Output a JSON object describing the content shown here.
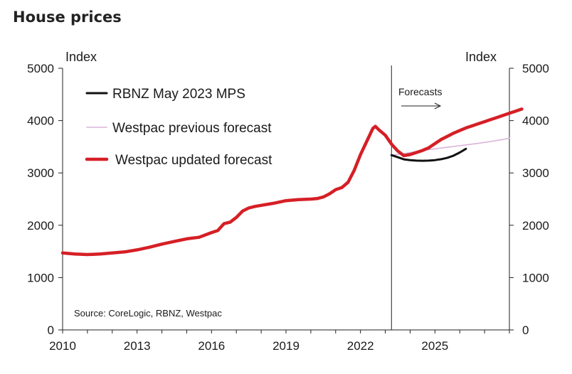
{
  "chart_data": {
    "type": "line",
    "title": "House prices",
    "ylabel_left": "Index",
    "ylabel_right": "Index",
    "xlim": [
      2010,
      2028
    ],
    "ylim": [
      0,
      5000
    ],
    "x_ticks": [
      2010,
      2013,
      2016,
      2019,
      2022,
      2025
    ],
    "y_ticks": [
      0,
      1000,
      2000,
      3000,
      4000,
      5000
    ],
    "forecast_start": 2023.25,
    "forecast_label": "Forecasts",
    "source": "Source: CoreLogic, RBNZ, Westpac",
    "series": [
      {
        "name": "RBNZ May 2023 MPS",
        "color": "#111111",
        "width": 3,
        "points": [
          [
            2023.25,
            3340
          ],
          [
            2023.5,
            3300
          ],
          [
            2023.75,
            3260
          ],
          [
            2024.0,
            3245
          ],
          [
            2024.25,
            3235
          ],
          [
            2024.5,
            3232
          ],
          [
            2024.75,
            3235
          ],
          [
            2025.0,
            3245
          ],
          [
            2025.25,
            3262
          ],
          [
            2025.5,
            3290
          ],
          [
            2025.75,
            3330
          ],
          [
            2026.0,
            3390
          ],
          [
            2026.25,
            3460
          ]
        ]
      },
      {
        "name": "Westpac previous forecast",
        "color": "#d9b4d9",
        "width": 1.6,
        "points": [
          [
            2023.25,
            3340
          ],
          [
            2023.75,
            3370
          ],
          [
            2024.25,
            3410
          ],
          [
            2024.75,
            3445
          ],
          [
            2025.25,
            3475
          ],
          [
            2025.75,
            3505
          ],
          [
            2026.25,
            3535
          ],
          [
            2026.75,
            3565
          ],
          [
            2027.25,
            3600
          ],
          [
            2027.75,
            3640
          ],
          [
            2028.0,
            3665
          ]
        ]
      },
      {
        "name": "Westpac updated forecast",
        "color": "#d61f26",
        "width": 4.5,
        "points": [
          [
            2010.0,
            1470
          ],
          [
            2010.5,
            1450
          ],
          [
            2011.0,
            1440
          ],
          [
            2011.5,
            1450
          ],
          [
            2012.0,
            1470
          ],
          [
            2012.5,
            1490
          ],
          [
            2013.0,
            1530
          ],
          [
            2013.5,
            1580
          ],
          [
            2014.0,
            1640
          ],
          [
            2014.5,
            1690
          ],
          [
            2015.0,
            1740
          ],
          [
            2015.5,
            1770
          ],
          [
            2016.0,
            1860
          ],
          [
            2016.25,
            1900
          ],
          [
            2016.5,
            2030
          ],
          [
            2016.75,
            2060
          ],
          [
            2017.0,
            2150
          ],
          [
            2017.25,
            2270
          ],
          [
            2017.5,
            2330
          ],
          [
            2017.75,
            2360
          ],
          [
            2018.0,
            2380
          ],
          [
            2018.5,
            2420
          ],
          [
            2019.0,
            2470
          ],
          [
            2019.5,
            2490
          ],
          [
            2020.0,
            2500
          ],
          [
            2020.25,
            2510
          ],
          [
            2020.5,
            2540
          ],
          [
            2020.75,
            2600
          ],
          [
            2021.0,
            2680
          ],
          [
            2021.25,
            2720
          ],
          [
            2021.5,
            2820
          ],
          [
            2021.75,
            3050
          ],
          [
            2022.0,
            3350
          ],
          [
            2022.25,
            3600
          ],
          [
            2022.5,
            3850
          ],
          [
            2022.6,
            3890
          ],
          [
            2022.75,
            3820
          ],
          [
            2023.0,
            3720
          ],
          [
            2023.25,
            3550
          ],
          [
            2023.5,
            3420
          ],
          [
            2023.75,
            3330
          ],
          [
            2024.0,
            3350
          ],
          [
            2024.25,
            3390
          ],
          [
            2024.5,
            3430
          ],
          [
            2024.75,
            3480
          ],
          [
            2025.0,
            3560
          ],
          [
            2025.25,
            3640
          ],
          [
            2025.5,
            3700
          ],
          [
            2025.75,
            3760
          ],
          [
            2026.0,
            3810
          ],
          [
            2026.25,
            3860
          ],
          [
            2026.5,
            3900
          ],
          [
            2026.75,
            3940
          ],
          [
            2027.0,
            3980
          ],
          [
            2027.25,
            4020
          ],
          [
            2027.5,
            4060
          ],
          [
            2027.75,
            4100
          ],
          [
            2028.0,
            4140
          ],
          [
            2028.25,
            4180
          ],
          [
            2028.5,
            4220
          ]
        ]
      }
    ]
  }
}
